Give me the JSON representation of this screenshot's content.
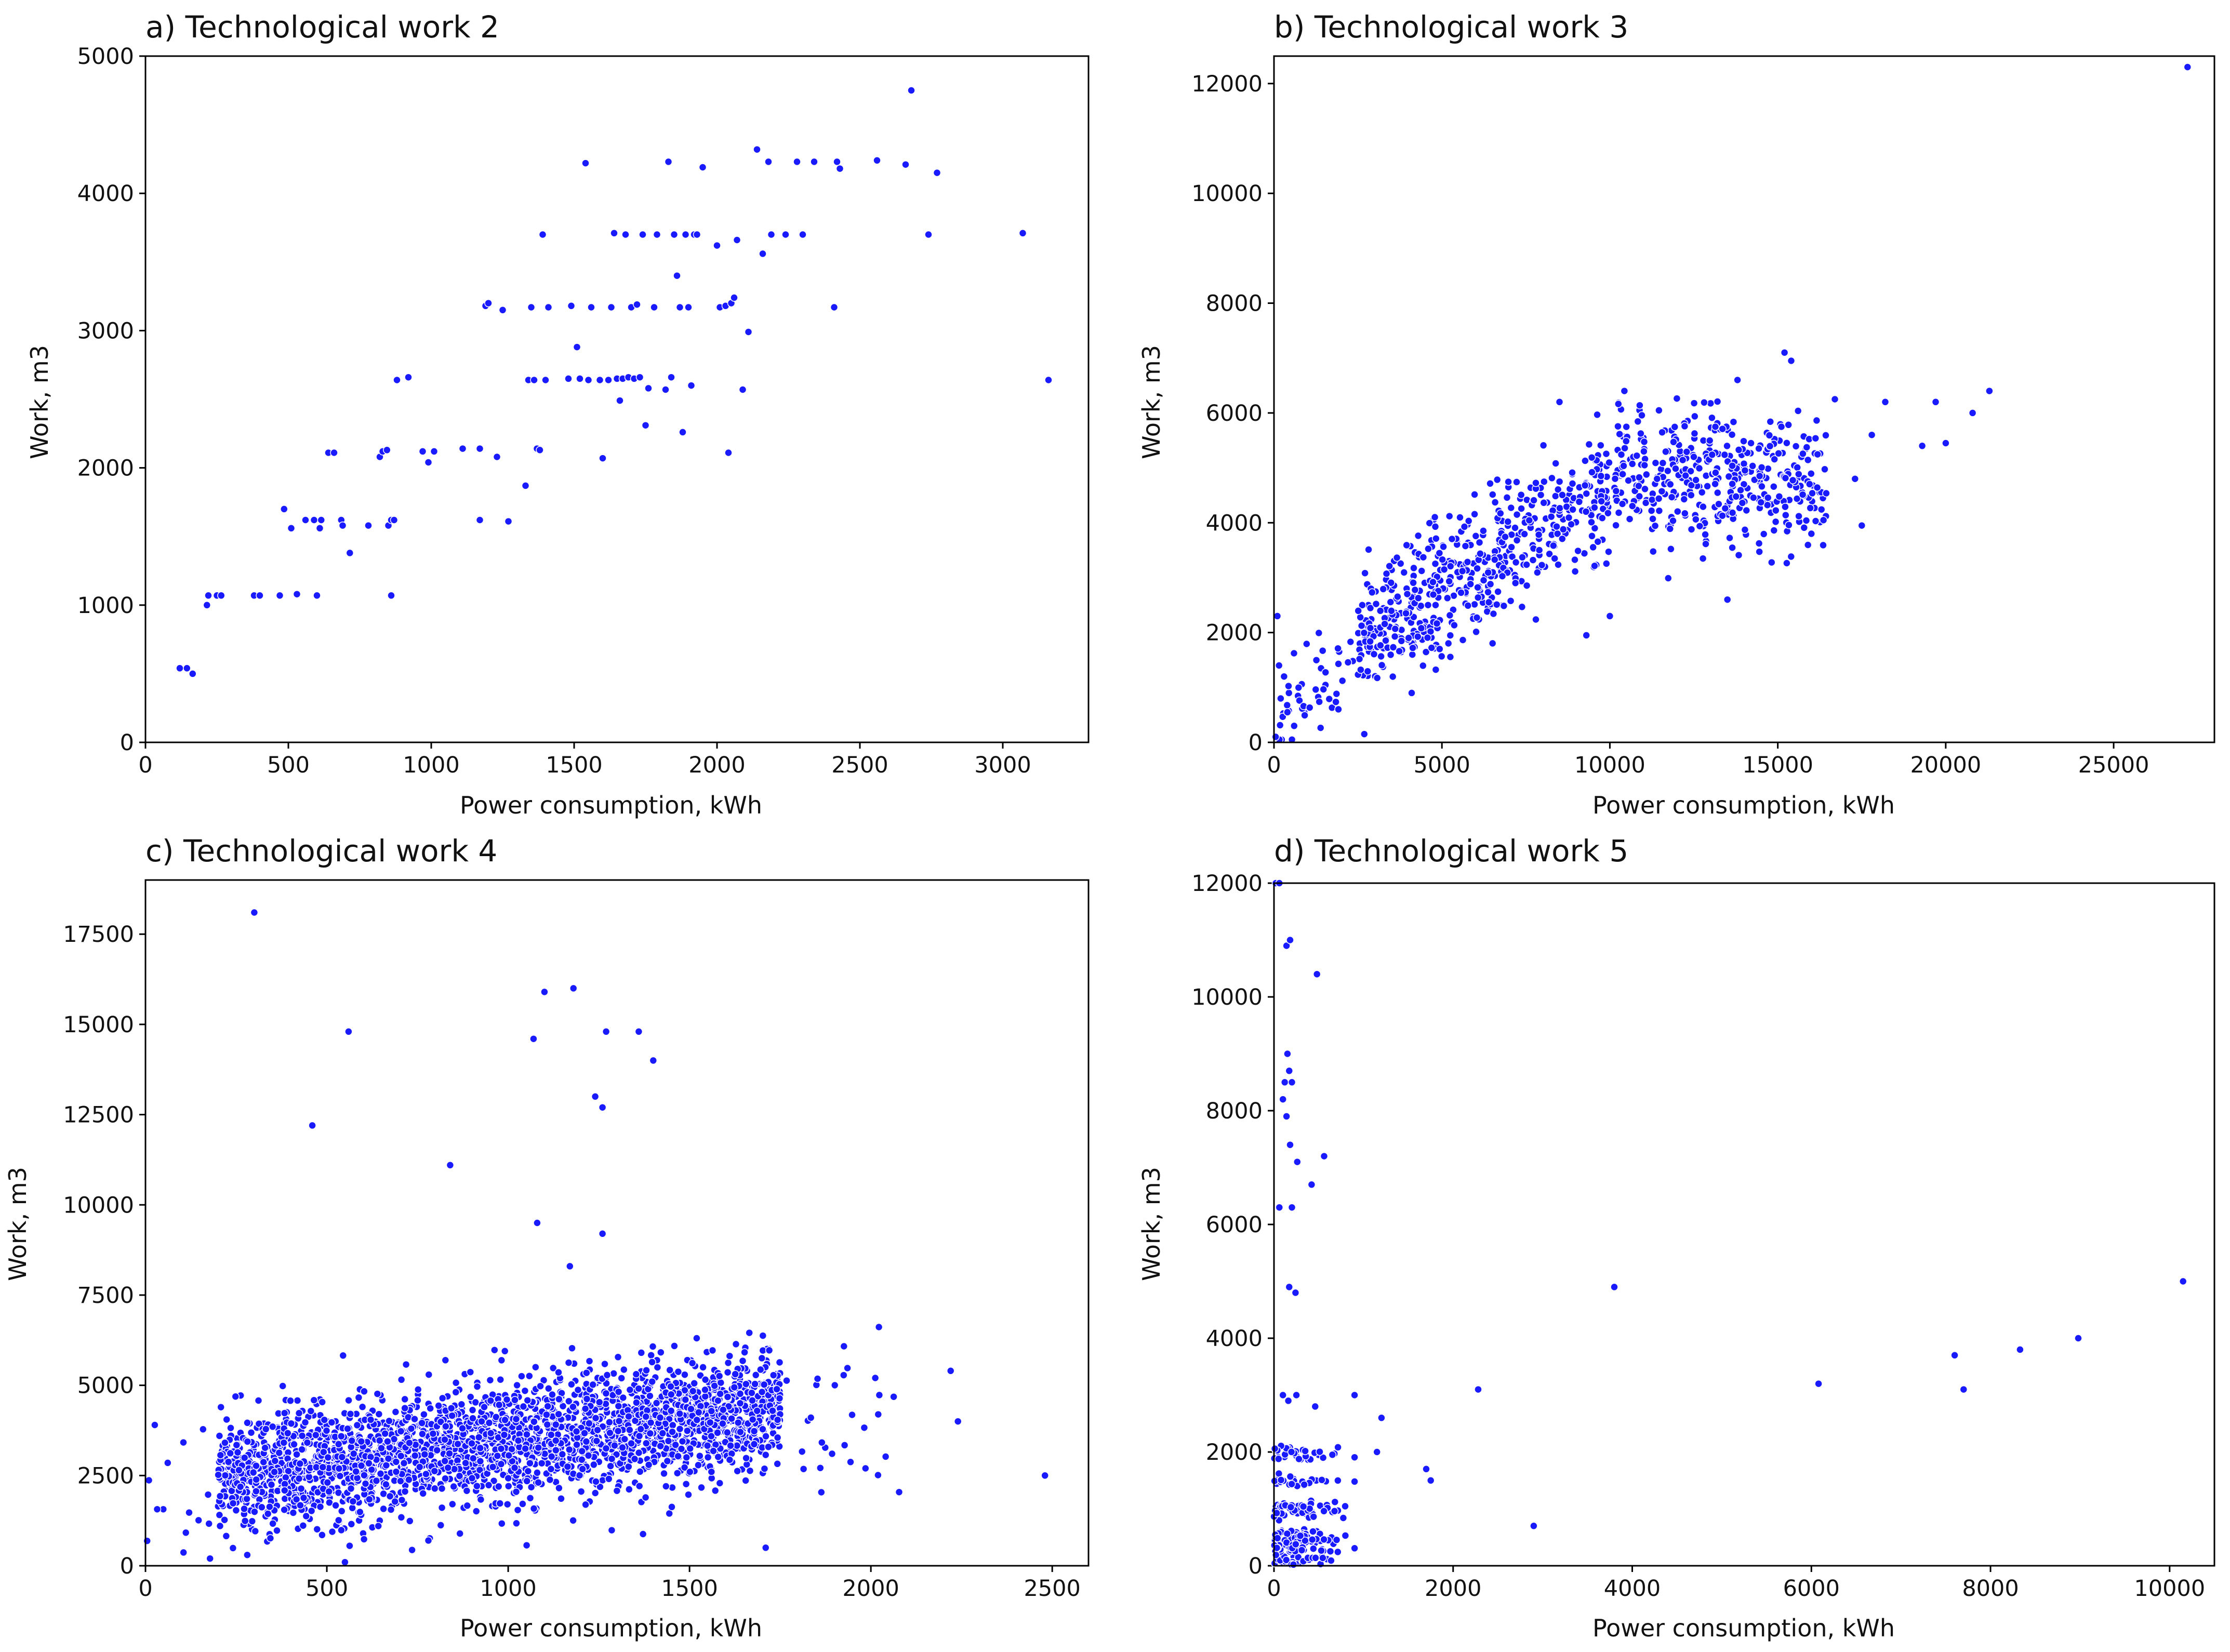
{
  "figure": {
    "colors": {
      "points": "#1a1aff",
      "axes": "#000000",
      "background": "#ffffff"
    }
  },
  "chart_data": [
    {
      "type": "scatter",
      "title": "a) Technological work 2",
      "xlabel": "Power consumption,  kWh",
      "ylabel": "Work, m3",
      "xlim": [
        0,
        3300
      ],
      "ylim": [
        0,
        5000
      ],
      "xticks": [
        0,
        500,
        1000,
        1500,
        2000,
        2500,
        3000
      ],
      "yticks": [
        0,
        1000,
        2000,
        3000,
        4000,
        5000
      ],
      "xtick_labels": [
        "0",
        "500",
        "1000",
        "1500",
        "2000",
        "2500",
        "3000"
      ],
      "ytick_labels": [
        "0",
        "1000",
        "2000",
        "3000",
        "4000",
        "5000"
      ],
      "points": [
        [
          120,
          540
        ],
        [
          145,
          540
        ],
        [
          165,
          500
        ],
        [
          215,
          1000
        ],
        [
          220,
          1070
        ],
        [
          250,
          1070
        ],
        [
          265,
          1070
        ],
        [
          380,
          1070
        ],
        [
          400,
          1070
        ],
        [
          470,
          1070
        ],
        [
          530,
          1080
        ],
        [
          600,
          1070
        ],
        [
          485,
          1700
        ],
        [
          510,
          1560
        ],
        [
          560,
          1620
        ],
        [
          590,
          1620
        ],
        [
          610,
          1560
        ],
        [
          615,
          1620
        ],
        [
          640,
          2110
        ],
        [
          660,
          2110
        ],
        [
          685,
          1620
        ],
        [
          690,
          1580
        ],
        [
          715,
          1380
        ],
        [
          780,
          1580
        ],
        [
          820,
          2080
        ],
        [
          830,
          2120
        ],
        [
          845,
          2130
        ],
        [
          850,
          1580
        ],
        [
          860,
          1620
        ],
        [
          870,
          1620
        ],
        [
          860,
          1070
        ],
        [
          880,
          2640
        ],
        [
          920,
          2660
        ],
        [
          970,
          2120
        ],
        [
          990,
          2040
        ],
        [
          1010,
          2120
        ],
        [
          1110,
          2140
        ],
        [
          1170,
          1620
        ],
        [
          1170,
          2140
        ],
        [
          1190,
          3180
        ],
        [
          1200,
          3200
        ],
        [
          1230,
          2080
        ],
        [
          1250,
          3150
        ],
        [
          1270,
          1610
        ],
        [
          1330,
          1870
        ],
        [
          1340,
          2640
        ],
        [
          1350,
          3170
        ],
        [
          1360,
          2640
        ],
        [
          1370,
          2140
        ],
        [
          1380,
          2130
        ],
        [
          1390,
          3700
        ],
        [
          1400,
          2640
        ],
        [
          1410,
          3170
        ],
        [
          1480,
          2650
        ],
        [
          1490,
          3180
        ],
        [
          1510,
          2880
        ],
        [
          1520,
          2650
        ],
        [
          1540,
          4220
        ],
        [
          1550,
          2640
        ],
        [
          1560,
          3170
        ],
        [
          1590,
          2640
        ],
        [
          1600,
          2070
        ],
        [
          1620,
          2640
        ],
        [
          1630,
          3170
        ],
        [
          1640,
          3710
        ],
        [
          1650,
          2650
        ],
        [
          1660,
          2490
        ],
        [
          1670,
          2650
        ],
        [
          1680,
          3700
        ],
        [
          1690,
          2660
        ],
        [
          1700,
          3170
        ],
        [
          1710,
          2650
        ],
        [
          1720,
          3190
        ],
        [
          1730,
          2660
        ],
        [
          1740,
          3700
        ],
        [
          1750,
          2310
        ],
        [
          1760,
          2580
        ],
        [
          1780,
          3170
        ],
        [
          1790,
          3700
        ],
        [
          1820,
          2570
        ],
        [
          1830,
          4230
        ],
        [
          1840,
          2660
        ],
        [
          1850,
          3700
        ],
        [
          1860,
          3400
        ],
        [
          1870,
          3170
        ],
        [
          1880,
          2260
        ],
        [
          1890,
          3700
        ],
        [
          1900,
          3170
        ],
        [
          1910,
          2600
        ],
        [
          1920,
          3700
        ],
        [
          1930,
          3700
        ],
        [
          1950,
          4190
        ],
        [
          2000,
          3620
        ],
        [
          2010,
          3170
        ],
        [
          2030,
          3180
        ],
        [
          2040,
          2110
        ],
        [
          2050,
          3200
        ],
        [
          2060,
          3240
        ],
        [
          2070,
          3660
        ],
        [
          2090,
          2570
        ],
        [
          2110,
          2990
        ],
        [
          2140,
          4320
        ],
        [
          2160,
          3560
        ],
        [
          2180,
          4230
        ],
        [
          2190,
          3700
        ],
        [
          2240,
          3700
        ],
        [
          2280,
          4230
        ],
        [
          2300,
          3700
        ],
        [
          2340,
          4230
        ],
        [
          2410,
          3170
        ],
        [
          2420,
          4230
        ],
        [
          2430,
          4180
        ],
        [
          2560,
          4240
        ],
        [
          2660,
          4210
        ],
        [
          2680,
          4750
        ],
        [
          2740,
          3700
        ],
        [
          2770,
          4150
        ],
        [
          3070,
          3710
        ],
        [
          3160,
          2640
        ]
      ]
    },
    {
      "type": "scatter",
      "title": "b) Technological work 3",
      "xlabel": "Power consumption,  kWh",
      "ylabel": "Work, m3",
      "xlim": [
        0,
        28000
      ],
      "ylim": [
        0,
        12500
      ],
      "xticks": [
        0,
        5000,
        10000,
        15000,
        20000,
        25000
      ],
      "yticks": [
        0,
        2000,
        4000,
        6000,
        8000,
        10000,
        12000
      ],
      "xtick_labels": [
        "0",
        "5000",
        "10000",
        "15000",
        "20000",
        "25000"
      ],
      "ytick_labels": [
        "0",
        "2000",
        "4000",
        "6000",
        "8000",
        "10000",
        "12000"
      ],
      "points": [
        [
          27200,
          12300
        ],
        [
          15200,
          7100
        ],
        [
          15400,
          6950
        ],
        [
          13800,
          6600
        ],
        [
          16700,
          6250
        ],
        [
          18200,
          6200
        ],
        [
          19700,
          6200
        ],
        [
          21300,
          6400
        ],
        [
          20800,
          6000
        ],
        [
          20000,
          5450
        ],
        [
          19300,
          5400
        ],
        [
          17800,
          5600
        ],
        [
          17300,
          4800
        ],
        [
          17500,
          3950
        ],
        [
          8500,
          6200
        ],
        [
          9300,
          1950
        ],
        [
          10000,
          2300
        ],
        [
          100,
          2300
        ],
        [
          150,
          1400
        ],
        [
          300,
          1200
        ],
        [
          200,
          800
        ],
        [
          400,
          550
        ],
        [
          600,
          300
        ],
        [
          50,
          100
        ],
        [
          4100,
          900
        ],
        [
          12500,
          5200
        ],
        [
          11800,
          4700
        ],
        [
          13500,
          2600
        ],
        [
          16000,
          3800
        ]
      ]
    },
    {
      "type": "scatter",
      "title": "c) Technological work 4",
      "xlabel": "Power consumption,  kWh",
      "ylabel": "Work, m3",
      "xlim": [
        0,
        2600
      ],
      "ylim": [
        0,
        19000
      ],
      "xticks": [
        0,
        500,
        1000,
        1500,
        2000,
        2500
      ],
      "yticks": [
        0,
        2500,
        5000,
        7500,
        10000,
        12500,
        15000,
        17500
      ],
      "xtick_labels": [
        "0",
        "500",
        "1000",
        "1500",
        "2000",
        "2500"
      ],
      "ytick_labels": [
        "0",
        "2500",
        "5000",
        "7500",
        "10000",
        "12500",
        "15000",
        "17500"
      ],
      "points": [
        [
          300,
          18100
        ],
        [
          560,
          14800
        ],
        [
          460,
          12200
        ],
        [
          840,
          11100
        ],
        [
          1100,
          15900
        ],
        [
          1180,
          16000
        ],
        [
          1070,
          14600
        ],
        [
          1270,
          14800
        ],
        [
          1360,
          14800
        ],
        [
          1400,
          14000
        ],
        [
          1240,
          13000
        ],
        [
          1260,
          12700
        ],
        [
          1260,
          9200
        ],
        [
          1080,
          9500
        ],
        [
          1170,
          8300
        ],
        [
          2480,
          2500
        ],
        [
          1710,
          500
        ],
        [
          780,
          700
        ],
        [
          550,
          100
        ],
        [
          2240,
          4000
        ],
        [
          2220,
          5400
        ]
      ]
    },
    {
      "type": "scatter",
      "title": "d) Technological work 5",
      "xlabel": "Power consumption,  kWh",
      "ylabel": "Work, m3",
      "xlim": [
        0,
        10500
      ],
      "ylim": [
        0,
        12000
      ],
      "xticks": [
        0,
        2000,
        4000,
        6000,
        8000,
        10000
      ],
      "yticks": [
        0,
        2000,
        4000,
        6000,
        8000,
        10000,
        12000
      ],
      "xtick_labels": [
        "0",
        "2000",
        "4000",
        "6000",
        "8000",
        "10000"
      ],
      "ytick_labels": [
        "0",
        "2000",
        "4000",
        "6000",
        "8000",
        "10000",
        "12000"
      ],
      "points": [
        [
          20,
          12000
        ],
        [
          60,
          12000
        ],
        [
          140,
          10900
        ],
        [
          180,
          11000
        ],
        [
          480,
          10400
        ],
        [
          120,
          8500
        ],
        [
          150,
          9000
        ],
        [
          170,
          8700
        ],
        [
          200,
          8500
        ],
        [
          100,
          8200
        ],
        [
          140,
          7900
        ],
        [
          180,
          7400
        ],
        [
          260,
          7100
        ],
        [
          420,
          6700
        ],
        [
          560,
          7200
        ],
        [
          60,
          6300
        ],
        [
          200,
          6300
        ],
        [
          170,
          4900
        ],
        [
          240,
          4800
        ],
        [
          100,
          3000
        ],
        [
          160,
          2900
        ],
        [
          250,
          3000
        ],
        [
          460,
          2800
        ],
        [
          900,
          3000
        ],
        [
          1150,
          2000
        ],
        [
          1200,
          2600
        ],
        [
          1700,
          1700
        ],
        [
          1750,
          1500
        ],
        [
          2280,
          3100
        ],
        [
          2900,
          700
        ],
        [
          3800,
          4900
        ],
        [
          6080,
          3200
        ],
        [
          7600,
          3700
        ],
        [
          7700,
          3100
        ],
        [
          8330,
          3800
        ],
        [
          8980,
          4000
        ],
        [
          10150,
          5000
        ]
      ]
    }
  ]
}
